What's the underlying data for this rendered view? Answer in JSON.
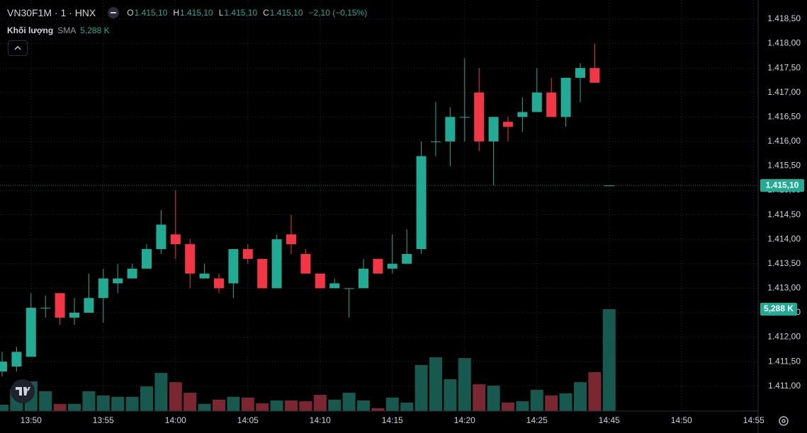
{
  "chart_data": {
    "type": "candlestick",
    "title": "VN30F1M · 1 · HNX",
    "ohlc_legend": [
      {
        "key": "O",
        "text": "1.415,10"
      },
      {
        "key": "H",
        "text": "1.415,10"
      },
      {
        "key": "L",
        "text": "1.415,10"
      },
      {
        "key": "C",
        "text": "1.415,10"
      }
    ],
    "change": "−2,10 (−0,15%)",
    "volume_name": "Khối lượng",
    "indicator": "SMA",
    "categories": [
      null,
      null,
      "13:50",
      null,
      null,
      null,
      null,
      "13:55",
      null,
      null,
      null,
      null,
      "14:00",
      null,
      null,
      null,
      null,
      "14:05",
      null,
      null,
      null,
      null,
      "14:10",
      null,
      null,
      null,
      null,
      "14:15",
      null,
      null,
      null,
      null,
      "14:20",
      null,
      null,
      null,
      null,
      "14:25",
      null,
      null,
      null,
      null,
      "14:45",
      null,
      null,
      null,
      null,
      "14:50",
      null,
      null,
      null,
      null,
      "14:55"
    ],
    "open": [
      1411.3,
      1411.4,
      1411.6,
      1412.6,
      1412.9,
      1412.4,
      1412.5,
      1412.8,
      1413.1,
      1413.2,
      1413.4,
      1413.8,
      1414.1,
      1413.9,
      1413.2,
      1413.2,
      1413.1,
      1413.8,
      1413.6,
      1413.0,
      1414.1,
      1413.7,
      1413.3,
      1413.0,
      1413.0,
      1413.0,
      1413.6,
      1413.4,
      1413.5,
      1413.8,
      1416.0,
      1416.0,
      1416.5,
      1417.0,
      1416.0,
      1416.4,
      1416.5,
      1416.6,
      1417.0,
      1416.5,
      1417.3,
      1417.5,
      1415.1,
      null,
      null,
      null,
      null,
      null,
      null,
      null,
      null,
      null,
      null
    ],
    "high": [
      1411.7,
      1411.8,
      1412.9,
      1412.85,
      1412.9,
      1412.8,
      1413.3,
      1413.4,
      1413.5,
      1413.5,
      1413.9,
      1414.6,
      1415.0,
      1414.0,
      1413.5,
      1413.3,
      1413.8,
      1413.9,
      1413.6,
      1414.1,
      1414.5,
      1413.8,
      1413.3,
      1413.2,
      1413.0,
      1413.6,
      1413.6,
      1414.1,
      1414.2,
      1416.0,
      1416.8,
      1416.7,
      1417.7,
      1417.5,
      1416.5,
      1416.5,
      1416.9,
      1417.5,
      1417.3,
      1417.3,
      1417.6,
      1418.0,
      1415.1,
      null,
      null,
      null,
      null,
      null,
      null,
      null,
      null,
      null,
      null
    ],
    "low": [
      1411.2,
      1411.3,
      1411.6,
      1412.4,
      1412.25,
      1412.25,
      1412.5,
      1412.3,
      1412.9,
      1413.2,
      1413.4,
      1413.7,
      1413.6,
      1413.0,
      1413.2,
      1412.9,
      1412.8,
      1413.5,
      1413.0,
      1413.0,
      1413.7,
      1413.3,
      1413.0,
      1413.0,
      1412.4,
      1413.0,
      1413.3,
      1413.3,
      1413.5,
      1413.7,
      1415.7,
      1415.5,
      1416.0,
      1415.8,
      1415.1,
      1416.0,
      1416.2,
      1416.6,
      1416.5,
      1416.3,
      1416.8,
      1417.2,
      1415.1,
      null,
      null,
      null,
      null,
      null,
      null,
      null,
      null,
      null,
      null
    ],
    "close": [
      1411.5,
      1411.7,
      1412.6,
      1412.6,
      1412.4,
      1412.5,
      1412.8,
      1413.2,
      1413.2,
      1413.4,
      1413.8,
      1414.3,
      1413.9,
      1413.3,
      1413.3,
      1413.0,
      1413.8,
      1413.6,
      1413.0,
      1414.0,
      1413.9,
      1413.3,
      1413.0,
      1413.1,
      1413.0,
      1413.4,
      1413.3,
      1413.5,
      1413.7,
      1415.7,
      1416.0,
      1416.5,
      1416.5,
      1416.0,
      1416.5,
      1416.3,
      1416.6,
      1417.0,
      1416.5,
      1417.3,
      1417.5,
      1417.2,
      1415.1,
      null,
      null,
      null,
      null,
      null,
      null,
      null,
      null,
      null,
      null
    ],
    "volume": {
      "values": [
        330,
        1140,
        1540,
        1030,
        370,
        370,
        1030,
        810,
        740,
        740,
        1280,
        1980,
        1500,
        950,
        370,
        590,
        740,
        700,
        400,
        550,
        550,
        510,
        840,
        590,
        950,
        550,
        150,
        700,
        440,
        2390,
        2790,
        1650,
        2750,
        1390,
        1320,
        440,
        510,
        1100,
        810,
        920,
        1500,
        2020,
        5288,
        null,
        null,
        null,
        null,
        null,
        null,
        null,
        null,
        null,
        null
      ],
      "ylim": [
        0,
        21336
      ]
    },
    "volume_tag": {
      "value": 5288,
      "label": "5,288 K"
    },
    "price_line": {
      "value": 1415.1,
      "label": "1.415,10"
    },
    "ylim": [
      1410.49,
      1418.89
    ],
    "yticks": [
      {
        "value": 1411.0,
        "label": "1.411,00"
      },
      {
        "value": 1411.5,
        "label": "1.411,50"
      },
      {
        "value": 1412.0,
        "label": "1.412,00"
      },
      {
        "value": 1412.5,
        "label": "1.412,50"
      },
      {
        "value": 1413.0,
        "label": "1.413,00"
      },
      {
        "value": 1413.5,
        "label": "1.413,50"
      },
      {
        "value": 1414.0,
        "label": "1.414,00"
      },
      {
        "value": 1414.5,
        "label": "1.414,50"
      },
      {
        "value": 1415.0,
        "label": "1.415,00"
      },
      {
        "value": 1415.5,
        "label": "1.415,50"
      },
      {
        "value": 1416.0,
        "label": "1.416,00"
      },
      {
        "value": 1416.5,
        "label": "1.416,50"
      },
      {
        "value": 1417.0,
        "label": "1.417,00"
      },
      {
        "value": 1417.5,
        "label": "1.417,50"
      },
      {
        "value": 1418.0,
        "label": "1.418,00"
      },
      {
        "value": 1418.5,
        "label": "1.418,50"
      }
    ],
    "grid": true,
    "up_color": "#22ab94",
    "down_color": "#f23645",
    "volume_up_color": "#17584f",
    "volume_down_color": "#7a2731"
  }
}
